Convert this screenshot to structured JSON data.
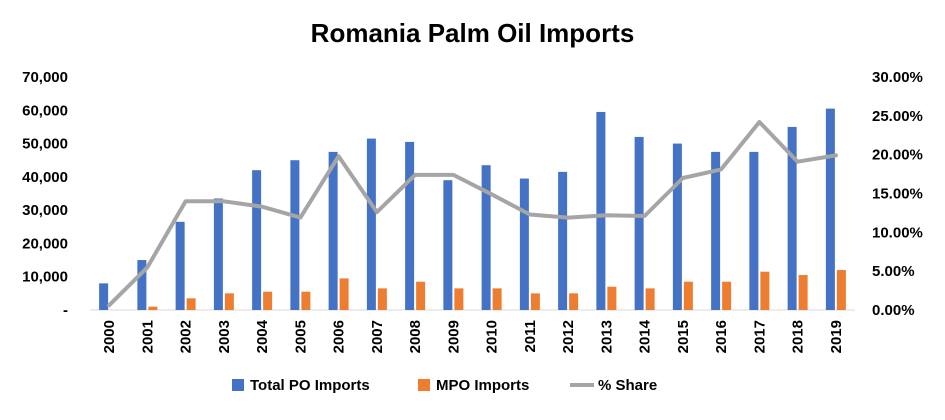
{
  "chart_data": {
    "type": "bar",
    "title": "Romania Palm Oil Imports",
    "categories": [
      "2000",
      "2001",
      "2002",
      "2003",
      "2004",
      "2005",
      "2006",
      "2007",
      "2008",
      "2009",
      "2010",
      "2011",
      "2012",
      "2013",
      "2014",
      "2015",
      "2016",
      "2017",
      "2018",
      "2019"
    ],
    "series": [
      {
        "name": "Total PO Imports",
        "type": "bar",
        "axis": "left",
        "color": "#4472C4",
        "values": [
          8000,
          15000,
          26500,
          33500,
          42000,
          45000,
          47500,
          51500,
          50500,
          39000,
          43500,
          39500,
          41500,
          59500,
          52000,
          50000,
          47500,
          47500,
          55000,
          60500
        ]
      },
      {
        "name": "MPO Imports",
        "type": "bar",
        "axis": "left",
        "color": "#ED7D31",
        "values": [
          0,
          1000,
          3500,
          5000,
          5500,
          5500,
          9500,
          6500,
          8500,
          6500,
          6500,
          5000,
          5000,
          7000,
          6500,
          8500,
          8500,
          11500,
          10500,
          12000
        ]
      },
      {
        "name": "% Share",
        "type": "line",
        "axis": "right",
        "color": "#A5A5A5",
        "values": [
          0.6,
          5.5,
          14.0,
          14.0,
          13.3,
          11.9,
          19.8,
          12.6,
          17.4,
          17.4,
          14.9,
          12.3,
          11.9,
          12.2,
          12.1,
          17.0,
          18.1,
          24.2,
          19.1,
          19.9
        ]
      }
    ],
    "y_left": {
      "min": 0,
      "max": 70000,
      "ticks": [
        "-",
        "10,000",
        "20,000",
        "30,000",
        "40,000",
        "50,000",
        "60,000",
        "70,000"
      ]
    },
    "y_right": {
      "min": 0,
      "max": 30,
      "ticks": [
        "0.00%",
        "5.00%",
        "10.00%",
        "15.00%",
        "20.00%",
        "25.00%",
        "30.00%"
      ]
    },
    "legend_position": "bottom",
    "grid": false
  }
}
